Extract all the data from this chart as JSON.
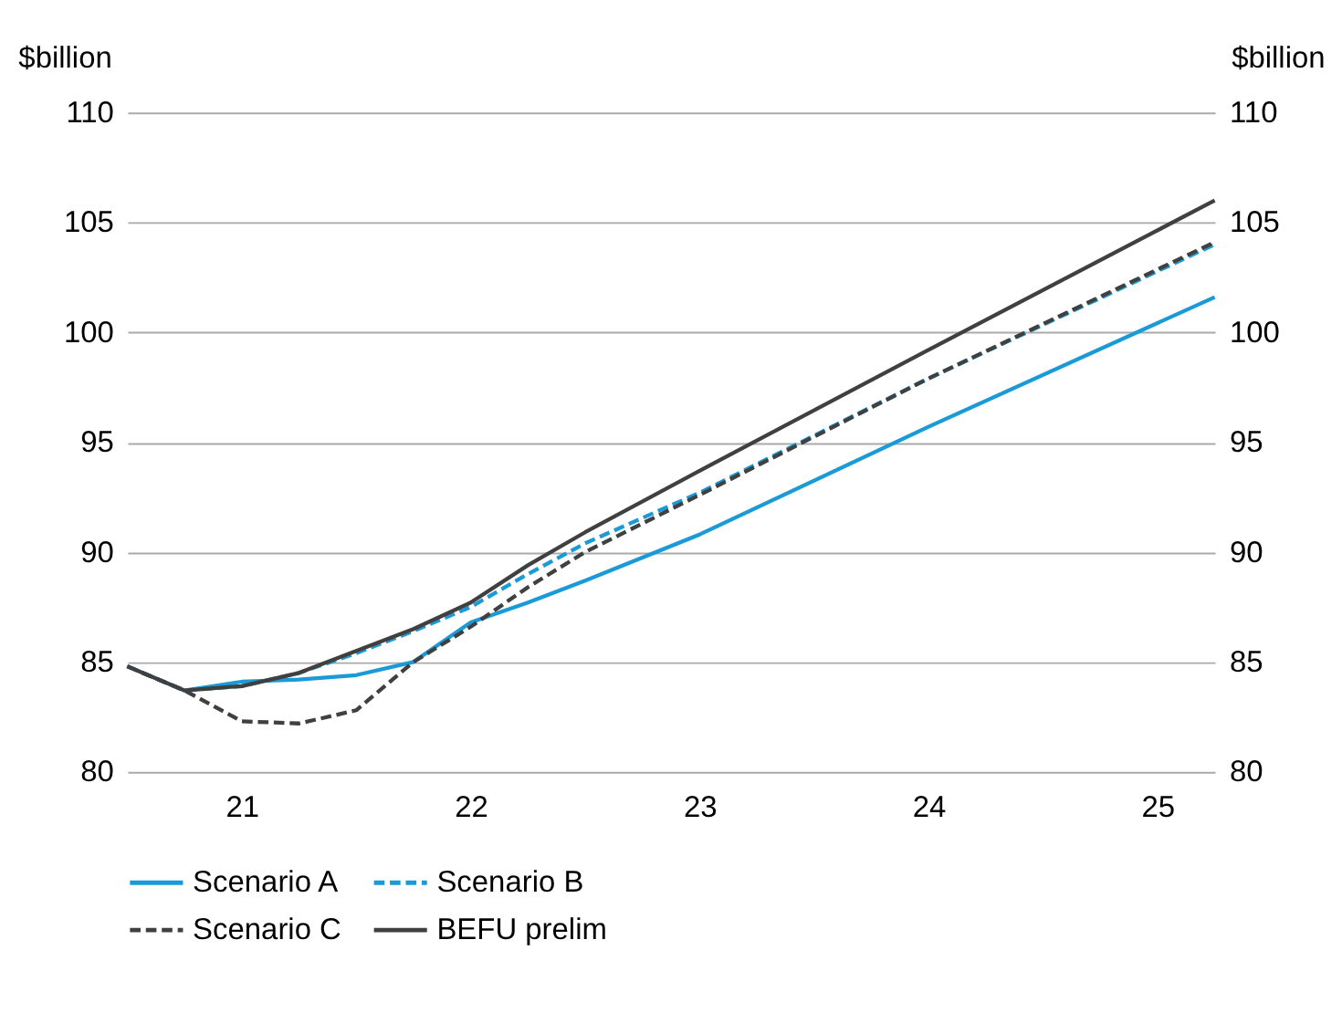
{
  "chart_data": {
    "type": "line",
    "ylabel": "$billion",
    "y2label": "$billion",
    "x": [
      20.5,
      20.75,
      21,
      21.25,
      21.5,
      21.75,
      22,
      22.25,
      22.5,
      23,
      24,
      25.25
    ],
    "xlim": [
      20.5,
      25.25
    ],
    "xticks": [
      21,
      22,
      23,
      24,
      25
    ],
    "ylim": [
      80,
      110
    ],
    "yticks": [
      80,
      85,
      90,
      95,
      100,
      105,
      110
    ],
    "y2lim": [
      80,
      110
    ],
    "y2ticks": [
      80,
      85,
      90,
      95,
      100,
      105,
      110
    ],
    "grid": "y",
    "legend": "bottom",
    "marker": "none",
    "series": [
      {
        "name": "Scenario A",
        "color": "#1a9bd7",
        "line_style": "solid",
        "values": [
          84.8,
          83.7,
          84.1,
          84.2,
          84.4,
          85.0,
          86.8,
          87.7,
          88.7,
          90.8,
          95.7,
          101.6
        ]
      },
      {
        "name": "Scenario B",
        "color": "#1a9bd7",
        "line_style": "dashed",
        "values": [
          84.8,
          83.7,
          83.9,
          84.5,
          85.4,
          86.4,
          87.5,
          89.0,
          90.4,
          92.7,
          97.9,
          104.0
        ]
      },
      {
        "name": "Scenario C",
        "color": "#404040",
        "line_style": "dashed",
        "values": [
          84.8,
          83.7,
          82.3,
          82.2,
          82.8,
          85.0,
          86.6,
          88.4,
          90.0,
          92.6,
          97.9,
          104.1
        ]
      },
      {
        "name": "BEFU prelim",
        "color": "#404040",
        "line_style": "solid",
        "values": [
          84.8,
          83.7,
          83.9,
          84.5,
          85.5,
          86.5,
          87.7,
          89.4,
          90.9,
          93.7,
          99.2,
          106.0
        ]
      }
    ]
  }
}
